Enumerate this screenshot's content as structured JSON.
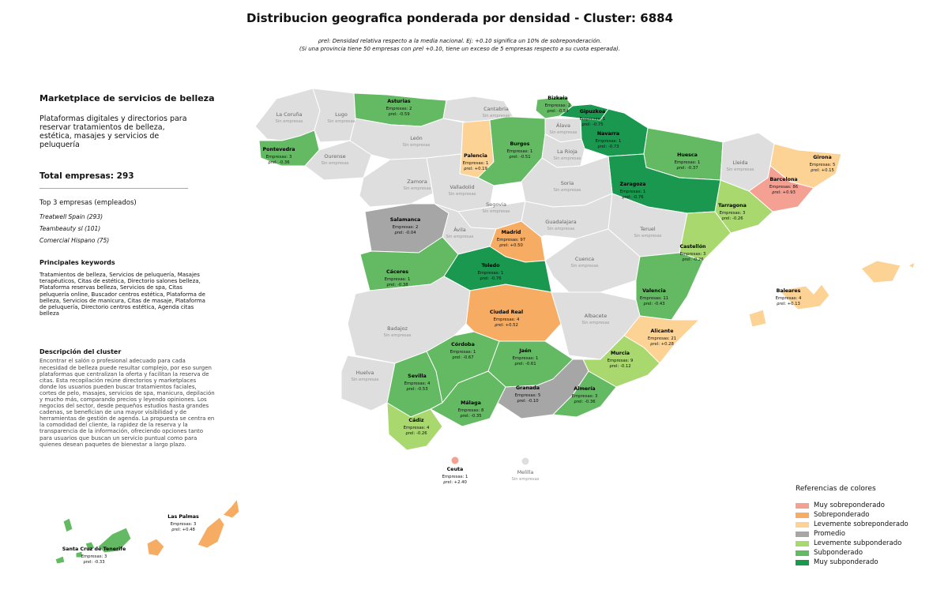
{
  "title": "Distribucion geografica ponderada por densidad - Cluster: 6884",
  "subtitle_lines": [
    "ρrel: Densidad relativa respecto a la media nacional. Ej: +0.10 significa un 10% de sobreponderación.",
    "(Si una provincia tiene 50 empresas con ρrel +0.10, tiene un exceso de 5 empresas respecto a su cuota esperada)."
  ],
  "sidebar": {
    "name": "Marketplace de servicios de belleza",
    "description": "Plataformas digitales y directorios para reservar tratamientos de belleza, estética, masajes y servicios de peluquería",
    "total": "Total empresas: 293",
    "top_title": "Top 3 empresas (empleados)",
    "top_companies": [
      "Treatwell Spain (293)",
      "Teambeauty sl (101)",
      "Comercial Hispano (75)"
    ],
    "keywords_title": "Principales keywords",
    "keywords": "Tratamientos de belleza, Servicios de peluquería, Masajes terapéuticos, Citas de estética, Directorio salones belleza, Plataforma reservas belleza, Servicios de spa, Citas peluquería online, Buscador centros estética, Plataforma de belleza, Servicios de manicura, Citas de masaje, Plataforma de peluquería, Directorio centros estética, Agenda citas belleza",
    "cluster_desc_title": "Descripción del cluster",
    "cluster_desc": "Encontrar el salón o profesional adecuado para cada necesidad de belleza puede resultar complejo, por eso surgen plataformas que centralizan la oferta y facilitan la reserva de citas. Esta recopilación reúne directorios y marketplaces donde los usuarios pueden buscar tratamientos faciales, cortes de pelo, masajes, servicios de spa, manicura, depilación y mucho más, comparando precios y leyendo opiniones. Los negocios del sector, desde pequeños estudios hasta grandes cadenas, se benefician de una mayor visibilidad y de herramientas de gestión de agenda. La propuesta se centra en la comodidad del cliente, la rapidez de la reserva y la transparencia de la información, ofreciendo opciones tanto para usuarios que buscan un servicio puntual como para quienes desean paquetes de bienestar a largo plazo."
  },
  "colors": {
    "muy_sobre": "#f4a194",
    "sobre": "#f6ad63",
    "lev_sobre": "#fdd395",
    "promedio": "#a6a6a6",
    "lev_sub": "#a8d86e",
    "sub": "#63ba63",
    "muy_sub": "#1a9850",
    "none": "#dedede",
    "border": "#ffffff"
  },
  "legend": {
    "title": "Referencias de colores",
    "items": [
      {
        "label": "Muy sobreponderado",
        "color": "#f4a194"
      },
      {
        "label": "Sobreponderado",
        "color": "#f6ad63"
      },
      {
        "label": "Levemente sobreponderado",
        "color": "#fdd395"
      },
      {
        "label": "Promedio",
        "color": "#a6a6a6"
      },
      {
        "label": "Levemente subponderado",
        "color": "#a8d86e"
      },
      {
        "label": "Subponderado",
        "color": "#63ba63"
      },
      {
        "label": "Muy subponderado",
        "color": "#1a9850"
      }
    ]
  },
  "provinces": [
    {
      "name": "Asturias",
      "count": "Empresas: 2",
      "rho": "ρrel: -0.59",
      "cat": "sub"
    },
    {
      "name": "Bizkaia",
      "count": "Empresas: 2",
      "rho": "ρrel: -0.54",
      "cat": "sub"
    },
    {
      "name": "Gipuzkoa",
      "count": "Empresas: 1",
      "rho": "ρrel: -0.75",
      "cat": "muy_sub"
    },
    {
      "name": "Navarra",
      "count": "Empresas: 1",
      "rho": "ρrel: -0.73",
      "cat": "muy_sub"
    },
    {
      "name": "Pontevedra",
      "count": "Empresas: 3",
      "rho": "ρrel: -0.36",
      "cat": "sub"
    },
    {
      "name": "Palencia",
      "count": "Empresas: 1",
      "rho": "ρrel: +0.19",
      "cat": "lev_sobre"
    },
    {
      "name": "Burgos",
      "count": "Empresas: 1",
      "rho": "ρrel: -0.51",
      "cat": "sub"
    },
    {
      "name": "Huesca",
      "count": "Empresas: 1",
      "rho": "ρrel: -0.37",
      "cat": "sub"
    },
    {
      "name": "Girona",
      "count": "Empresas: 5",
      "rho": "ρrel: +0.15",
      "cat": "lev_sobre"
    },
    {
      "name": "Barcelona",
      "count": "Empresas: 86",
      "rho": "ρrel: +0.93",
      "cat": "muy_sobre"
    },
    {
      "name": "Zaragoza",
      "count": "Empresas: 1",
      "rho": "ρrel: -0.76",
      "cat": "muy_sub"
    },
    {
      "name": "Tarragona",
      "count": "Empresas: 3",
      "rho": "ρrel: -0.26",
      "cat": "lev_sub"
    },
    {
      "name": "Salamanca",
      "count": "Empresas: 2",
      "rho": "ρrel: -0.04",
      "cat": "promedio"
    },
    {
      "name": "Madrid",
      "count": "Empresas: 97",
      "rho": "ρrel: +0.50",
      "cat": "sobre"
    },
    {
      "name": "Castellón",
      "count": "Empresas: 3",
      "rho": "ρrel: -0.26",
      "cat": "lev_sub"
    },
    {
      "name": "Cáceres",
      "count": "Empresas: 1",
      "rho": "ρrel: -0.38",
      "cat": "sub"
    },
    {
      "name": "Toledo",
      "count": "Empresas: 1",
      "rho": "ρrel: -0.76",
      "cat": "muy_sub"
    },
    {
      "name": "Valencia",
      "count": "Empresas: 11",
      "rho": "ρrel: -0.43",
      "cat": "sub"
    },
    {
      "name": "Baleares",
      "count": "Empresas: 4",
      "rho": "ρrel: +0.13",
      "cat": "lev_sobre"
    },
    {
      "name": "Ciudad Real",
      "count": "Empresas: 4",
      "rho": "ρrel: +0.52",
      "cat": "sobre"
    },
    {
      "name": "Alicante",
      "count": "Empresas: 21",
      "rho": "ρrel: +0.28",
      "cat": "lev_sobre"
    },
    {
      "name": "Córdoba",
      "count": "Empresas: 1",
      "rho": "ρrel: -0.67",
      "cat": "sub"
    },
    {
      "name": "Jaén",
      "count": "Empresas: 1",
      "rho": "ρrel: -0.61",
      "cat": "sub"
    },
    {
      "name": "Murcia",
      "count": "Empresas: 9",
      "rho": "ρrel: -0.12",
      "cat": "lev_sub"
    },
    {
      "name": "Sevilla",
      "count": "Empresas: 4",
      "rho": "ρrel: -0.53",
      "cat": "sub"
    },
    {
      "name": "Granada",
      "count": "Empresas: 5",
      "rho": "ρrel: -0.10",
      "cat": "promedio"
    },
    {
      "name": "Almería",
      "count": "Empresas: 3",
      "rho": "ρrel: -0.36",
      "cat": "sub"
    },
    {
      "name": "Málaga",
      "count": "Empresas: 8",
      "rho": "ρrel: -0.35",
      "cat": "sub"
    },
    {
      "name": "Cádiz",
      "count": "Empresas: 4",
      "rho": "ρrel: -0.26",
      "cat": "lev_sub"
    },
    {
      "name": "Ceuta",
      "count": "Empresas: 1",
      "rho": "ρrel: +2.40",
      "cat": "muy_sobre"
    },
    {
      "name": "Las Palmas",
      "count": "Empresas: 3",
      "rho": "ρrel: +0.48",
      "cat": "sobre"
    },
    {
      "name": "Santa Cruz de Tenerife",
      "count": "Empresas: 3",
      "rho": "ρrel: -0.33",
      "cat": "sub"
    }
  ],
  "empty_provinces": {
    "none_label": "Sin empresas",
    "names": [
      "La Coruña",
      "Lugo",
      "Cantabria",
      "Álava",
      "León",
      "Ourense",
      "La Rioja",
      "Lleida",
      "Zamora",
      "Valladolid",
      "Soria",
      "Segovia",
      "Guadalajara",
      "Ávila",
      "Teruel",
      "Cuenca",
      "Badajoz",
      "Albacete",
      "Huelva",
      "Melilla"
    ]
  }
}
